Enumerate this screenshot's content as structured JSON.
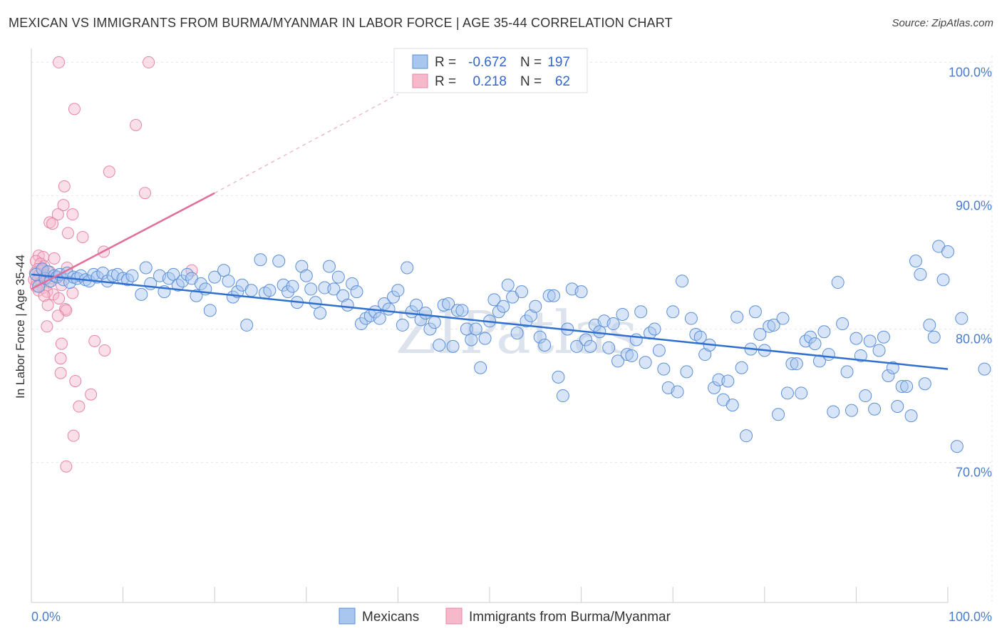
{
  "title": "MEXICAN VS IMMIGRANTS FROM BURMA/MYANMAR IN LABOR FORCE | AGE 35-44 CORRELATION CHART",
  "source": "Source: ZipAtlas.com",
  "watermark": "ZIPatlas",
  "colors": {
    "blue_fill": "#a9c6ef",
    "blue_stroke": "#5b8fd6",
    "blue_line": "#2e6fcf",
    "pink_fill": "#f6b9cc",
    "pink_stroke": "#e585a5",
    "pink_line": "#e0709a",
    "tick_text": "#4a7cc9",
    "grid": "#e2e6ec"
  },
  "legend": {
    "rows": [
      {
        "r_label": "R =",
        "r_value": "-0.672",
        "n_label": "N =",
        "n_value": "197"
      },
      {
        "r_label": "R =",
        "r_value": "0.218",
        "n_label": "N =",
        "n_value": "62"
      }
    ]
  },
  "bottom_legend": [
    "Mexicans",
    "Immigrants from Burma/Myanmar"
  ],
  "chart_data": {
    "type": "scatter",
    "title": "MEXICAN VS IMMIGRANTS FROM BURMA/MYANMAR IN LABOR FORCE | AGE 35-44 CORRELATION CHART",
    "ylabel": "In Labor Force | Age 35-44",
    "xlabel": "",
    "xlim": [
      0,
      100
    ],
    "ylim": [
      59.5,
      102
    ],
    "y_ticks": [
      70,
      80,
      90,
      100
    ],
    "y_tick_labels": [
      "70.0%",
      "80.0%",
      "90.0%",
      "100.0%"
    ],
    "x_tick_labels": [
      "0.0%",
      "100.0%"
    ],
    "grid": true,
    "legend_position": "top-center",
    "series": [
      {
        "name": "Mexicans",
        "R": -0.672,
        "N": 197,
        "trend": {
          "x": [
            0,
            100
          ],
          "y": [
            84.1,
            77.0
          ]
        },
        "points": [
          [
            0.5,
            84.1
          ],
          [
            0.8,
            83.2
          ],
          [
            1.2,
            84.5
          ],
          [
            1.5,
            83.8
          ],
          [
            1.8,
            84.3
          ],
          [
            2.1,
            83.6
          ],
          [
            2.5,
            84.0
          ],
          [
            2.8,
            83.9
          ],
          [
            3.1,
            84.1
          ],
          [
            3.5,
            83.7
          ],
          [
            3.9,
            84.2
          ],
          [
            4.2,
            83.5
          ],
          [
            4.6,
            83.9
          ],
          [
            5.0,
            83.8
          ],
          [
            5.4,
            84.0
          ],
          [
            5.9,
            83.7
          ],
          [
            6.3,
            83.6
          ],
          [
            6.8,
            84.1
          ],
          [
            7.2,
            83.9
          ],
          [
            7.8,
            84.2
          ],
          [
            8.3,
            83.6
          ],
          [
            8.9,
            84.0
          ],
          [
            9.4,
            84.1
          ],
          [
            10.0,
            83.8
          ],
          [
            10.5,
            83.7
          ],
          [
            11.0,
            84.0
          ],
          [
            12.0,
            82.6
          ],
          [
            12.5,
            84.6
          ],
          [
            13.0,
            83.4
          ],
          [
            14.0,
            84.0
          ],
          [
            14.5,
            82.8
          ],
          [
            15.0,
            83.8
          ],
          [
            15.5,
            84.1
          ],
          [
            16.0,
            83.3
          ],
          [
            16.5,
            83.6
          ],
          [
            17.0,
            84.1
          ],
          [
            17.5,
            83.8
          ],
          [
            18.0,
            82.5
          ],
          [
            18.5,
            83.4
          ],
          [
            19.0,
            83.0
          ],
          [
            19.5,
            81.4
          ],
          [
            20.0,
            83.9
          ],
          [
            21.0,
            84.4
          ],
          [
            21.5,
            83.6
          ],
          [
            22.0,
            82.4
          ],
          [
            22.5,
            82.8
          ],
          [
            23.0,
            83.3
          ],
          [
            23.5,
            80.3
          ],
          [
            24.0,
            82.9
          ],
          [
            25.0,
            85.2
          ],
          [
            25.5,
            82.7
          ],
          [
            26.0,
            82.9
          ],
          [
            27.0,
            85.1
          ],
          [
            27.5,
            83.3
          ],
          [
            28.0,
            82.8
          ],
          [
            28.5,
            83.2
          ],
          [
            29.0,
            82.0
          ],
          [
            29.5,
            84.7
          ],
          [
            30.0,
            84.0
          ],
          [
            30.5,
            83.0
          ],
          [
            31.0,
            82.0
          ],
          [
            31.5,
            81.2
          ],
          [
            32.0,
            83.1
          ],
          [
            32.5,
            84.7
          ],
          [
            33.0,
            83.0
          ],
          [
            33.5,
            83.9
          ],
          [
            34.0,
            82.5
          ],
          [
            34.5,
            81.8
          ],
          [
            35.0,
            83.4
          ],
          [
            35.5,
            82.8
          ],
          [
            36.0,
            80.4
          ],
          [
            36.5,
            80.8
          ],
          [
            37.0,
            81.0
          ],
          [
            37.5,
            81.3
          ],
          [
            38.0,
            80.8
          ],
          [
            38.5,
            81.9
          ],
          [
            39.0,
            81.5
          ],
          [
            39.5,
            82.4
          ],
          [
            40.0,
            82.9
          ],
          [
            40.5,
            80.3
          ],
          [
            41.0,
            84.6
          ],
          [
            41.5,
            81.3
          ],
          [
            42.0,
            81.8
          ],
          [
            42.5,
            80.7
          ],
          [
            43.0,
            81.2
          ],
          [
            43.5,
            80.0
          ],
          [
            44.0,
            80.5
          ],
          [
            44.5,
            78.8
          ],
          [
            45.0,
            81.8
          ],
          [
            45.5,
            81.9
          ],
          [
            46.0,
            78.7
          ],
          [
            46.5,
            81.4
          ],
          [
            47.0,
            81.4
          ],
          [
            47.5,
            80.0
          ],
          [
            48.0,
            79.2
          ],
          [
            48.5,
            80.0
          ],
          [
            49.0,
            77.1
          ],
          [
            49.5,
            79.3
          ],
          [
            50.0,
            80.6
          ],
          [
            50.5,
            82.2
          ],
          [
            51.0,
            81.3
          ],
          [
            51.5,
            81.7
          ],
          [
            52.0,
            83.3
          ],
          [
            52.5,
            82.4
          ],
          [
            53.0,
            79.7
          ],
          [
            53.5,
            82.8
          ],
          [
            54.0,
            80.6
          ],
          [
            54.5,
            81.0
          ],
          [
            55.0,
            81.7
          ],
          [
            55.5,
            79.4
          ],
          [
            56.0,
            78.8
          ],
          [
            56.5,
            82.5
          ],
          [
            57.0,
            82.5
          ],
          [
            57.5,
            76.4
          ],
          [
            58.0,
            75.0
          ],
          [
            58.5,
            80.0
          ],
          [
            59.0,
            83.0
          ],
          [
            59.5,
            78.7
          ],
          [
            60.0,
            82.8
          ],
          [
            60.5,
            79.2
          ],
          [
            61.0,
            78.7
          ],
          [
            61.5,
            80.3
          ],
          [
            62.0,
            79.8
          ],
          [
            62.5,
            80.6
          ],
          [
            63.0,
            78.6
          ],
          [
            63.5,
            80.4
          ],
          [
            64.0,
            77.6
          ],
          [
            64.5,
            81.1
          ],
          [
            65.0,
            78.1
          ],
          [
            65.5,
            78.0
          ],
          [
            66.0,
            79.2
          ],
          [
            66.5,
            81.3
          ],
          [
            67.0,
            77.5
          ],
          [
            67.5,
            79.7
          ],
          [
            68.0,
            80.0
          ],
          [
            68.5,
            78.4
          ],
          [
            69.0,
            77.0
          ],
          [
            69.5,
            75.6
          ],
          [
            70.0,
            81.3
          ],
          [
            70.5,
            75.3
          ],
          [
            71.0,
            83.6
          ],
          [
            71.5,
            76.8
          ],
          [
            72.0,
            80.8
          ],
          [
            72.5,
            79.6
          ],
          [
            73.0,
            79.4
          ],
          [
            73.5,
            78.1
          ],
          [
            74.0,
            78.8
          ],
          [
            74.5,
            75.6
          ],
          [
            75.0,
            76.2
          ],
          [
            75.5,
            74.7
          ],
          [
            76.0,
            76.1
          ],
          [
            76.5,
            74.3
          ],
          [
            77.0,
            80.9
          ],
          [
            77.5,
            77.1
          ],
          [
            78.0,
            72.0
          ],
          [
            78.5,
            78.5
          ],
          [
            79.0,
            81.3
          ],
          [
            79.5,
            79.6
          ],
          [
            80.0,
            78.4
          ],
          [
            80.5,
            80.2
          ],
          [
            81.0,
            80.3
          ],
          [
            81.5,
            73.6
          ],
          [
            82.0,
            80.8
          ],
          [
            82.5,
            75.2
          ],
          [
            83.0,
            77.4
          ],
          [
            83.5,
            77.4
          ],
          [
            84.0,
            75.2
          ],
          [
            84.5,
            79.1
          ],
          [
            85.0,
            79.4
          ],
          [
            85.5,
            78.9
          ],
          [
            86.0,
            77.6
          ],
          [
            86.5,
            79.8
          ],
          [
            87.0,
            78.1
          ],
          [
            87.5,
            73.8
          ],
          [
            88.0,
            83.5
          ],
          [
            88.5,
            80.4
          ],
          [
            89.0,
            76.8
          ],
          [
            89.5,
            73.9
          ],
          [
            90.0,
            79.3
          ],
          [
            90.5,
            78.0
          ],
          [
            91.0,
            75.0
          ],
          [
            91.5,
            79.1
          ],
          [
            92.0,
            74.0
          ],
          [
            92.5,
            78.4
          ],
          [
            93.0,
            79.4
          ],
          [
            93.5,
            76.5
          ],
          [
            94.0,
            77.1
          ],
          [
            94.5,
            74.2
          ],
          [
            95.0,
            75.7
          ],
          [
            95.5,
            75.7
          ],
          [
            96.0,
            73.5
          ],
          [
            96.5,
            85.1
          ],
          [
            97.0,
            84.1
          ],
          [
            97.5,
            75.9
          ],
          [
            98.0,
            80.3
          ],
          [
            98.5,
            79.4
          ],
          [
            99.0,
            86.2
          ],
          [
            99.5,
            83.7
          ],
          [
            100.0,
            85.8
          ],
          [
            101.0,
            71.2
          ],
          [
            101.5,
            80.8
          ],
          [
            104.0,
            77.0
          ]
        ]
      },
      {
        "name": "Immigrants from Burma/Myanmar",
        "R": 0.218,
        "N": 62,
        "trend": {
          "x": [
            0,
            20
          ],
          "y": [
            83.0,
            90.2
          ]
        },
        "trend_extension": {
          "x": [
            20,
            40
          ],
          "y": [
            90.2,
            97.6
          ]
        },
        "points": [
          [
            3.0,
            100.0
          ],
          [
            12.8,
            100.0
          ],
          [
            4.7,
            96.5
          ],
          [
            11.4,
            95.3
          ],
          [
            8.5,
            91.8
          ],
          [
            12.4,
            90.2
          ],
          [
            3.6,
            90.7
          ],
          [
            3.5,
            89.3
          ],
          [
            2.9,
            88.6
          ],
          [
            4.5,
            88.6
          ],
          [
            2.0,
            88.0
          ],
          [
            2.3,
            87.9
          ],
          [
            4.0,
            87.2
          ],
          [
            5.6,
            86.9
          ],
          [
            7.9,
            85.8
          ],
          [
            0.8,
            85.5
          ],
          [
            1.3,
            85.4
          ],
          [
            2.5,
            85.3
          ],
          [
            0.5,
            85.1
          ],
          [
            1.0,
            84.9
          ],
          [
            1.4,
            84.7
          ],
          [
            3.9,
            84.6
          ],
          [
            0.7,
            84.5
          ],
          [
            1.2,
            84.4
          ],
          [
            2.0,
            84.3
          ],
          [
            17.5,
            84.4
          ],
          [
            0.4,
            84.2
          ],
          [
            0.9,
            84.1
          ],
          [
            1.6,
            84.0
          ],
          [
            2.2,
            83.8
          ],
          [
            2.8,
            83.9
          ],
          [
            0.3,
            83.7
          ],
          [
            0.6,
            83.6
          ],
          [
            1.1,
            83.5
          ],
          [
            1.9,
            83.5
          ],
          [
            3.3,
            83.3
          ],
          [
            0.5,
            83.2
          ],
          [
            1.3,
            83.1
          ],
          [
            0.8,
            82.9
          ],
          [
            1.7,
            82.8
          ],
          [
            4.5,
            82.7
          ],
          [
            2.4,
            82.6
          ],
          [
            1.4,
            82.5
          ],
          [
            3.0,
            82.3
          ],
          [
            1.8,
            81.8
          ],
          [
            3.7,
            81.5
          ],
          [
            3.8,
            81.4
          ],
          [
            2.9,
            81.0
          ],
          [
            1.7,
            80.2
          ],
          [
            6.9,
            79.1
          ],
          [
            3.3,
            78.9
          ],
          [
            8.0,
            78.4
          ],
          [
            3.2,
            77.8
          ],
          [
            3.2,
            76.7
          ],
          [
            4.8,
            76.1
          ],
          [
            6.5,
            75.1
          ],
          [
            5.2,
            74.2
          ],
          [
            4.6,
            72.0
          ],
          [
            3.8,
            69.7
          ]
        ]
      }
    ]
  }
}
